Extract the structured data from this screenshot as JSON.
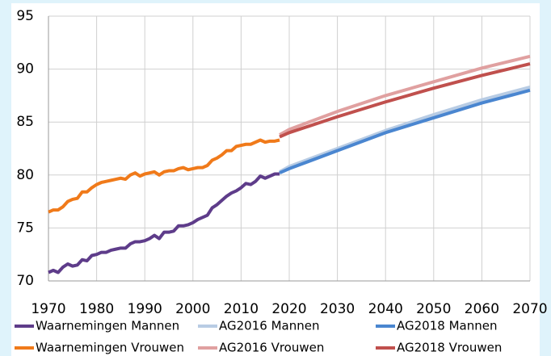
{
  "chart_data": {
    "type": "line",
    "xlim": [
      1970,
      2070
    ],
    "xticks": [
      1970,
      1980,
      1990,
      2000,
      2010,
      2020,
      2030,
      2040,
      2050,
      2060,
      2070
    ],
    "ylim": [
      70,
      95
    ],
    "yticks": [
      70,
      75,
      80,
      85,
      90,
      95
    ],
    "grid": true,
    "series": [
      {
        "name": "Waarnemingen Mannen",
        "color": "#5e3c8a",
        "x": [
          1970,
          1971,
          1972,
          1973,
          1974,
          1975,
          1976,
          1977,
          1978,
          1979,
          1980,
          1981,
          1982,
          1983,
          1984,
          1985,
          1986,
          1987,
          1988,
          1989,
          1990,
          1991,
          1992,
          1993,
          1994,
          1995,
          1996,
          1997,
          1998,
          1999,
          2000,
          2001,
          2002,
          2003,
          2004,
          2005,
          2006,
          2007,
          2008,
          2009,
          2010,
          2011,
          2012,
          2013,
          2014,
          2015,
          2016,
          2017,
          2018
        ],
        "values": [
          70.8,
          71.0,
          70.8,
          71.3,
          71.6,
          71.4,
          71.5,
          72.0,
          71.9,
          72.4,
          72.5,
          72.7,
          72.7,
          72.9,
          73.0,
          73.1,
          73.1,
          73.5,
          73.7,
          73.7,
          73.8,
          74.0,
          74.3,
          74.0,
          74.6,
          74.6,
          74.7,
          75.2,
          75.2,
          75.3,
          75.5,
          75.8,
          76.0,
          76.2,
          76.9,
          77.2,
          77.6,
          78.0,
          78.3,
          78.5,
          78.8,
          79.2,
          79.1,
          79.4,
          79.9,
          79.7,
          79.9,
          80.1,
          80.1
        ]
      },
      {
        "name": "AG2016 Mannen",
        "color": "#b8cce4",
        "x": [
          2018,
          2020,
          2030,
          2040,
          2050,
          2060,
          2070
        ],
        "values": [
          80.3,
          80.8,
          82.5,
          84.2,
          85.7,
          87.1,
          88.3
        ]
      },
      {
        "name": "AG2018 Mannen",
        "color": "#4a86d0",
        "x": [
          2018,
          2020,
          2030,
          2040,
          2050,
          2060,
          2070
        ],
        "values": [
          80.2,
          80.6,
          82.3,
          84.0,
          85.4,
          86.8,
          88.0
        ]
      },
      {
        "name": "Waarnemingen Vrouwen",
        "color": "#f07a1a",
        "x": [
          1970,
          1971,
          1972,
          1973,
          1974,
          1975,
          1976,
          1977,
          1978,
          1979,
          1980,
          1981,
          1982,
          1983,
          1984,
          1985,
          1986,
          1987,
          1988,
          1989,
          1990,
          1991,
          1992,
          1993,
          1994,
          1995,
          1996,
          1997,
          1998,
          1999,
          2000,
          2001,
          2002,
          2003,
          2004,
          2005,
          2006,
          2007,
          2008,
          2009,
          2010,
          2011,
          2012,
          2013,
          2014,
          2015,
          2016,
          2017,
          2018
        ],
        "values": [
          76.5,
          76.7,
          76.7,
          77.0,
          77.5,
          77.7,
          77.8,
          78.4,
          78.4,
          78.8,
          79.1,
          79.3,
          79.4,
          79.5,
          79.6,
          79.7,
          79.6,
          80.0,
          80.2,
          79.9,
          80.1,
          80.2,
          80.3,
          80.0,
          80.3,
          80.4,
          80.4,
          80.6,
          80.7,
          80.5,
          80.6,
          80.7,
          80.7,
          80.9,
          81.4,
          81.6,
          81.9,
          82.3,
          82.3,
          82.7,
          82.8,
          82.9,
          82.9,
          83.1,
          83.3,
          83.1,
          83.2,
          83.2,
          83.3
        ]
      },
      {
        "name": "AG2016 Vrouwen",
        "color": "#e0a0a0",
        "x": [
          2018,
          2020,
          2030,
          2040,
          2050,
          2060,
          2070
        ],
        "values": [
          83.8,
          84.3,
          86.0,
          87.5,
          88.8,
          90.1,
          91.2
        ]
      },
      {
        "name": "AG2018 Vrouwen",
        "color": "#c0504d",
        "x": [
          2018,
          2020,
          2030,
          2040,
          2050,
          2060,
          2070
        ],
        "values": [
          83.6,
          84.0,
          85.5,
          86.9,
          88.2,
          89.4,
          90.5
        ]
      }
    ]
  }
}
